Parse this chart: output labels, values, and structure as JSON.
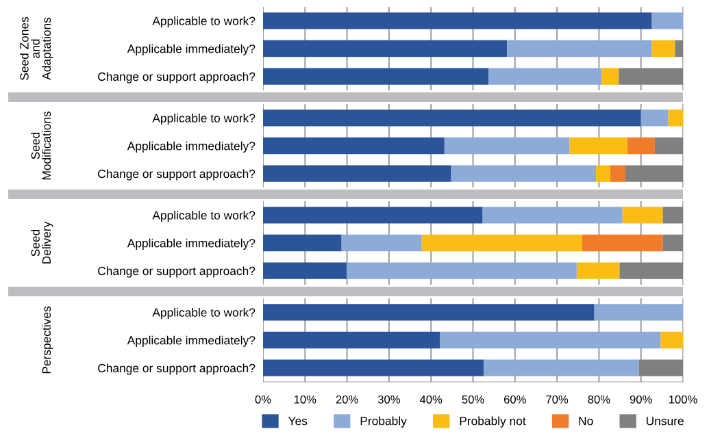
{
  "chart_data": [
    {
      "type": "bar",
      "orientation": "horizontal",
      "stacked": true,
      "ylabel": "Seed Zones\nand\nAdaptations",
      "categories": [
        "Applicable to work?",
        "Applicable immediately?",
        "Change or support approach?"
      ],
      "series": [
        {
          "color": "#2c5599",
          "values": [
            92.6,
            58.1,
            53.7
          ]
        },
        {
          "color": "#8cabd9",
          "values": [
            7.4,
            34.5,
            26.9
          ]
        },
        {
          "color": "#fbbd13",
          "values": [
            0,
            5.5,
            4.1
          ]
        },
        {
          "color": "#f07b2b",
          "values": [
            0,
            0,
            0
          ]
        },
        {
          "color": "#808080",
          "values": [
            0,
            1.9,
            15.3
          ]
        }
      ],
      "xlim": [
        0,
        100
      ],
      "grid": "x",
      "tick_labels": "y"
    },
    {
      "type": "bar",
      "orientation": "horizontal",
      "stacked": true,
      "ylabel": "Seed\nModifications",
      "categories": [
        "Applicable to work?",
        "Applicable immediately?",
        "Change or support approach?"
      ],
      "series": [
        {
          "color": "#2c5599",
          "values": [
            90.0,
            43.2,
            44.8
          ]
        },
        {
          "color": "#8cabd9",
          "values": [
            6.5,
            29.8,
            34.5
          ]
        },
        {
          "color": "#fbbd13",
          "values": [
            3.5,
            13.8,
            3.4
          ]
        },
        {
          "color": "#f07b2b",
          "values": [
            0,
            6.5,
            3.6
          ]
        },
        {
          "color": "#808080",
          "values": [
            0,
            6.7,
            13.7
          ]
        }
      ],
      "xlim": [
        0,
        100
      ],
      "grid": "x",
      "tick_labels": "y"
    },
    {
      "type": "bar",
      "orientation": "horizontal",
      "stacked": true,
      "ylabel": "Seed\nDelivery",
      "categories": [
        "Applicable to work?",
        "Applicable immediately?",
        "Change or support approach?"
      ],
      "series": [
        {
          "color": "#2c5599",
          "values": [
            52.3,
            18.7,
            19.9
          ]
        },
        {
          "color": "#8cabd9",
          "values": [
            33.3,
            19.1,
            54.8
          ]
        },
        {
          "color": "#fbbd13",
          "values": [
            9.6,
            38.2,
            10.2
          ]
        },
        {
          "color": "#f07b2b",
          "values": [
            0,
            19.2,
            0
          ]
        },
        {
          "color": "#808080",
          "values": [
            4.8,
            4.8,
            15.1
          ]
        }
      ],
      "xlim": [
        0,
        100
      ],
      "grid": "x",
      "tick_labels": "y"
    },
    {
      "type": "bar",
      "orientation": "horizontal",
      "stacked": true,
      "ylabel": "Perspectives",
      "categories": [
        "Applicable to work?",
        "Applicable immediately?",
        "Change or support approach?"
      ],
      "series": [
        {
          "name": "Yes",
          "color": "#2c5599",
          "values": [
            78.9,
            42.1,
            52.6
          ]
        },
        {
          "name": "Probably",
          "color": "#8cabd9",
          "values": [
            21.1,
            52.6,
            36.9
          ]
        },
        {
          "name": "Probably not",
          "color": "#fbbd13",
          "values": [
            0,
            5.3,
            0
          ]
        },
        {
          "name": "No",
          "color": "#f07b2b",
          "values": [
            0,
            0,
            0
          ]
        },
        {
          "name": "Unsure",
          "color": "#808080",
          "values": [
            0,
            0,
            10.5
          ]
        }
      ],
      "xlim": [
        0,
        100
      ],
      "xticks": [
        {
          "value": 0,
          "label": "0%"
        },
        {
          "value": 10,
          "label": "10%"
        },
        {
          "value": 20,
          "label": "20%"
        },
        {
          "value": 30,
          "label": "30%"
        },
        {
          "value": 40,
          "label": "40%"
        },
        {
          "value": 50,
          "label": "50%"
        },
        {
          "value": 60,
          "label": "60%"
        },
        {
          "value": 70,
          "label": "70%"
        },
        {
          "value": 80,
          "label": "80%"
        },
        {
          "value": 90,
          "label": "90%"
        },
        {
          "value": 100,
          "label": "100%"
        }
      ],
      "grid": "x",
      "legend": "bottom"
    }
  ]
}
